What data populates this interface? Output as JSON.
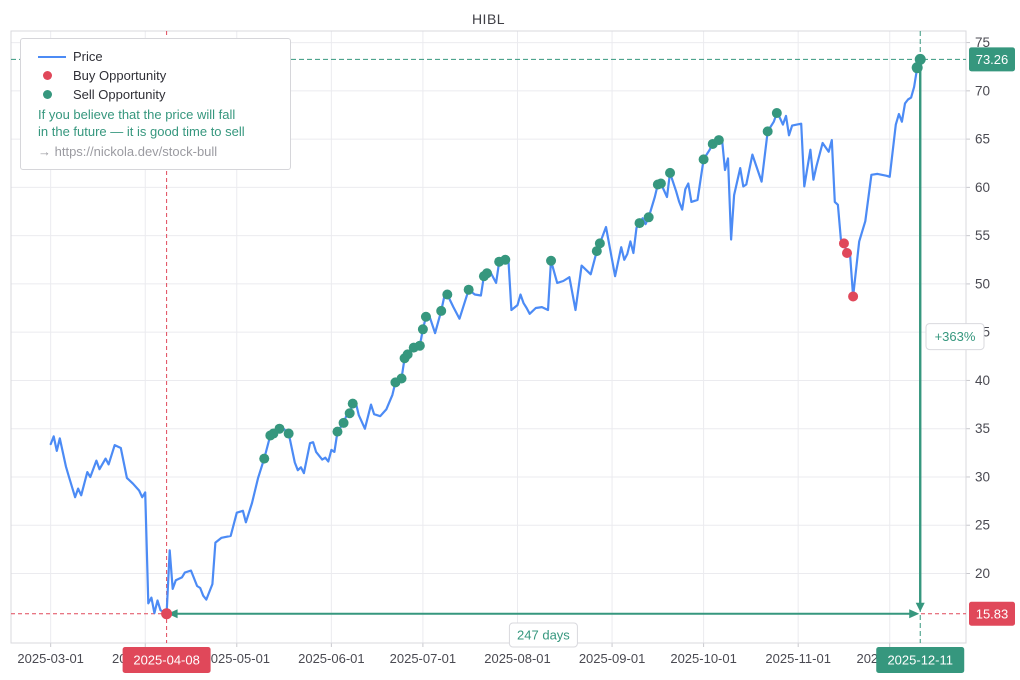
{
  "title": "HIBL",
  "legend": {
    "price_label": "Price",
    "buy_label": "Buy Opportunity",
    "sell_label": "Sell Opportunity",
    "note_line1": "If you believe that the price will fall",
    "note_line2": "in the future — it is good time to sell",
    "link": "→ https://nickola.dev/stock-bull"
  },
  "colors": {
    "price": "#4c8bf5",
    "buy": "#e0485a",
    "sell": "#36977e",
    "grid": "#ebebef",
    "border": "#d9d9de",
    "tick": "#c8c8cd",
    "text": "#4a4a52",
    "badge_text": "#ffffff",
    "box_bg": "#ffffff"
  },
  "chart_data": {
    "type": "line",
    "title": "HIBL",
    "xlabel": "",
    "ylabel": "",
    "grid": true,
    "legend_position": "top-left",
    "x_domain": [
      "2025-02-16",
      "2025-12-26"
    ],
    "y_domain": [
      12.8,
      76.2
    ],
    "x_ticks": [
      "2025-03-01",
      "2025-04-01",
      "2025-05-01",
      "2025-06-01",
      "2025-07-01",
      "2025-08-01",
      "2025-09-01",
      "2025-10-01",
      "2025-11-01",
      "2025-12-01"
    ],
    "y_ticks": [
      20,
      25,
      30,
      35,
      40,
      45,
      50,
      55,
      60,
      65,
      70,
      75
    ],
    "series": [
      {
        "name": "Price",
        "points": [
          [
            "2025-03-01",
            33.4
          ],
          [
            "2025-03-02",
            34.2
          ],
          [
            "2025-03-03",
            32.7
          ],
          [
            "2025-03-04",
            34.0
          ],
          [
            "2025-03-06",
            31.1
          ],
          [
            "2025-03-07",
            30.0
          ],
          [
            "2025-03-09",
            27.9
          ],
          [
            "2025-03-10",
            28.8
          ],
          [
            "2025-03-11",
            28.1
          ],
          [
            "2025-03-13",
            30.5
          ],
          [
            "2025-03-14",
            30.0
          ],
          [
            "2025-03-16",
            31.7
          ],
          [
            "2025-03-17",
            30.8
          ],
          [
            "2025-03-19",
            31.9
          ],
          [
            "2025-03-20",
            31.3
          ],
          [
            "2025-03-22",
            33.3
          ],
          [
            "2025-03-24",
            33.0
          ],
          [
            "2025-03-26",
            29.9
          ],
          [
            "2025-03-28",
            29.3
          ],
          [
            "2025-03-30",
            28.6
          ],
          [
            "2025-03-31",
            27.9
          ],
          [
            "2025-04-01",
            28.4
          ],
          [
            "2025-04-02",
            16.9
          ],
          [
            "2025-04-03",
            17.5
          ],
          [
            "2025-04-04",
            15.9
          ],
          [
            "2025-04-05",
            17.2
          ],
          [
            "2025-04-06",
            16.2
          ],
          [
            "2025-04-08",
            15.83
          ],
          [
            "2025-04-09",
            22.4
          ],
          [
            "2025-04-10",
            18.4
          ],
          [
            "2025-04-11",
            19.3
          ],
          [
            "2025-04-13",
            19.6
          ],
          [
            "2025-04-14",
            20.1
          ],
          [
            "2025-04-16",
            20.3
          ],
          [
            "2025-04-18",
            18.7
          ],
          [
            "2025-04-19",
            18.5
          ],
          [
            "2025-04-20",
            17.7
          ],
          [
            "2025-04-21",
            17.3
          ],
          [
            "2025-04-23",
            18.9
          ],
          [
            "2025-04-24",
            23.2
          ],
          [
            "2025-04-26",
            23.7
          ],
          [
            "2025-04-29",
            23.9
          ],
          [
            "2025-05-01",
            26.3
          ],
          [
            "2025-05-03",
            26.5
          ],
          [
            "2025-05-04",
            25.3
          ],
          [
            "2025-05-06",
            27.3
          ],
          [
            "2025-05-08",
            29.9
          ],
          [
            "2025-05-10",
            31.9
          ],
          [
            "2025-05-12",
            34.3
          ],
          [
            "2025-05-13",
            34.5
          ],
          [
            "2025-05-15",
            35.0
          ],
          [
            "2025-05-16",
            35.1
          ],
          [
            "2025-05-18",
            34.5
          ],
          [
            "2025-05-20",
            31.5
          ],
          [
            "2025-05-21",
            30.7
          ],
          [
            "2025-05-22",
            31.0
          ],
          [
            "2025-05-23",
            30.4
          ],
          [
            "2025-05-25",
            33.5
          ],
          [
            "2025-05-26",
            33.6
          ],
          [
            "2025-05-27",
            32.6
          ],
          [
            "2025-05-29",
            31.8
          ],
          [
            "2025-05-30",
            32.0
          ],
          [
            "2025-05-31",
            31.6
          ],
          [
            "2025-06-01",
            32.8
          ],
          [
            "2025-06-02",
            32.6
          ],
          [
            "2025-06-03",
            34.7
          ],
          [
            "2025-06-05",
            35.6
          ],
          [
            "2025-06-06",
            36.4
          ],
          [
            "2025-06-07",
            36.6
          ],
          [
            "2025-06-08",
            37.6
          ],
          [
            "2025-06-09",
            37.7
          ],
          [
            "2025-06-10",
            36.4
          ],
          [
            "2025-06-12",
            35.0
          ],
          [
            "2025-06-14",
            37.5
          ],
          [
            "2025-06-15",
            36.5
          ],
          [
            "2025-06-17",
            36.3
          ],
          [
            "2025-06-19",
            37.0
          ],
          [
            "2025-06-21",
            38.5
          ],
          [
            "2025-06-22",
            39.8
          ],
          [
            "2025-06-24",
            40.2
          ],
          [
            "2025-06-25",
            42.3
          ],
          [
            "2025-06-26",
            42.7
          ],
          [
            "2025-06-28",
            43.4
          ],
          [
            "2025-06-30",
            43.6
          ],
          [
            "2025-07-01",
            45.3
          ],
          [
            "2025-07-02",
            46.6
          ],
          [
            "2025-07-03",
            46.8
          ],
          [
            "2025-07-05",
            44.9
          ],
          [
            "2025-07-07",
            47.2
          ],
          [
            "2025-07-08",
            48.7
          ],
          [
            "2025-07-09",
            48.9
          ],
          [
            "2025-07-11",
            47.6
          ],
          [
            "2025-07-13",
            46.4
          ],
          [
            "2025-07-16",
            49.4
          ],
          [
            "2025-07-18",
            48.9
          ],
          [
            "2025-07-20",
            48.8
          ],
          [
            "2025-07-21",
            50.8
          ],
          [
            "2025-07-22",
            51.1
          ],
          [
            "2025-07-23",
            51.3
          ],
          [
            "2025-07-25",
            50.1
          ],
          [
            "2025-07-26",
            52.3
          ],
          [
            "2025-07-28",
            52.5
          ],
          [
            "2025-07-29",
            52.7
          ],
          [
            "2025-07-30",
            47.3
          ],
          [
            "2025-08-01",
            47.8
          ],
          [
            "2025-08-02",
            48.9
          ],
          [
            "2025-08-03",
            48.0
          ],
          [
            "2025-08-04",
            47.5
          ],
          [
            "2025-08-05",
            46.9
          ],
          [
            "2025-08-07",
            47.5
          ],
          [
            "2025-08-09",
            47.6
          ],
          [
            "2025-08-11",
            47.3
          ],
          [
            "2025-08-12",
            52.4
          ],
          [
            "2025-08-14",
            50.1
          ],
          [
            "2025-08-16",
            50.3
          ],
          [
            "2025-08-18",
            50.7
          ],
          [
            "2025-08-20",
            47.3
          ],
          [
            "2025-08-22",
            51.9
          ],
          [
            "2025-08-25",
            51.0
          ],
          [
            "2025-08-27",
            53.4
          ],
          [
            "2025-08-28",
            54.2
          ],
          [
            "2025-08-30",
            55.9
          ],
          [
            "2025-09-02",
            50.8
          ],
          [
            "2025-09-04",
            53.8
          ],
          [
            "2025-09-05",
            52.5
          ],
          [
            "2025-09-06",
            53.1
          ],
          [
            "2025-09-07",
            54.4
          ],
          [
            "2025-09-08",
            53.2
          ],
          [
            "2025-09-09",
            55.8
          ],
          [
            "2025-09-10",
            56.3
          ],
          [
            "2025-09-11",
            56.8
          ],
          [
            "2025-09-12",
            56.2
          ],
          [
            "2025-09-13",
            56.9
          ],
          [
            "2025-09-15",
            59.0
          ],
          [
            "2025-09-16",
            60.3
          ],
          [
            "2025-09-17",
            60.4
          ],
          [
            "2025-09-19",
            59.0
          ],
          [
            "2025-09-20",
            61.5
          ],
          [
            "2025-09-22",
            59.6
          ],
          [
            "2025-09-23",
            58.5
          ],
          [
            "2025-09-24",
            57.7
          ],
          [
            "2025-09-25",
            59.8
          ],
          [
            "2025-09-26",
            60.4
          ],
          [
            "2025-09-27",
            58.5
          ],
          [
            "2025-09-29",
            58.7
          ],
          [
            "2025-10-01",
            62.9
          ],
          [
            "2025-10-03",
            63.9
          ],
          [
            "2025-10-04",
            64.5
          ],
          [
            "2025-10-06",
            64.9
          ],
          [
            "2025-10-07",
            65.1
          ],
          [
            "2025-10-08",
            61.8
          ],
          [
            "2025-10-09",
            63.0
          ],
          [
            "2025-10-10",
            54.6
          ],
          [
            "2025-10-11",
            59.2
          ],
          [
            "2025-10-13",
            62.0
          ],
          [
            "2025-10-14",
            60.1
          ],
          [
            "2025-10-15",
            60.3
          ],
          [
            "2025-10-17",
            63.4
          ],
          [
            "2025-10-20",
            60.6
          ],
          [
            "2025-10-22",
            65.8
          ],
          [
            "2025-10-24",
            66.8
          ],
          [
            "2025-10-25",
            67.7
          ],
          [
            "2025-10-26",
            67.2
          ],
          [
            "2025-10-27",
            66.5
          ],
          [
            "2025-10-28",
            67.4
          ],
          [
            "2025-10-29",
            65.4
          ],
          [
            "2025-10-30",
            66.4
          ],
          [
            "2025-11-02",
            66.6
          ],
          [
            "2025-11-03",
            60.1
          ],
          [
            "2025-11-05",
            63.9
          ],
          [
            "2025-11-06",
            60.8
          ],
          [
            "2025-11-07",
            62.2
          ],
          [
            "2025-11-09",
            64.6
          ],
          [
            "2025-11-11",
            63.7
          ],
          [
            "2025-11-12",
            64.9
          ],
          [
            "2025-11-13",
            58.5
          ],
          [
            "2025-11-14",
            58.2
          ],
          [
            "2025-11-15",
            54.6
          ],
          [
            "2025-11-16",
            54.2
          ],
          [
            "2025-11-17",
            53.2
          ],
          [
            "2025-11-18",
            53.0
          ],
          [
            "2025-11-19",
            48.7
          ],
          [
            "2025-11-21",
            54.4
          ],
          [
            "2025-11-23",
            56.5
          ],
          [
            "2025-11-25",
            61.3
          ],
          [
            "2025-11-27",
            61.4
          ],
          [
            "2025-11-30",
            61.2
          ],
          [
            "2025-12-01",
            61.1
          ],
          [
            "2025-12-03",
            66.5
          ],
          [
            "2025-12-04",
            67.6
          ],
          [
            "2025-12-05",
            66.8
          ],
          [
            "2025-12-06",
            68.7
          ],
          [
            "2025-12-07",
            69.1
          ],
          [
            "2025-12-08",
            69.3
          ],
          [
            "2025-12-09",
            70.4
          ],
          [
            "2025-12-10",
            72.4
          ],
          [
            "2025-12-11",
            73.26
          ]
        ]
      }
    ],
    "buy_points": [
      [
        "2025-04-08",
        15.83
      ],
      [
        "2025-11-16",
        54.2
      ],
      [
        "2025-11-17",
        53.2
      ],
      [
        "2025-11-19",
        48.7
      ]
    ],
    "sell_points": [
      [
        "2025-05-10",
        31.9
      ],
      [
        "2025-05-12",
        34.3
      ],
      [
        "2025-05-13",
        34.5
      ],
      [
        "2025-05-15",
        35.0
      ],
      [
        "2025-05-18",
        34.5
      ],
      [
        "2025-06-03",
        34.7
      ],
      [
        "2025-06-05",
        35.6
      ],
      [
        "2025-06-07",
        36.6
      ],
      [
        "2025-06-08",
        37.6
      ],
      [
        "2025-06-22",
        39.8
      ],
      [
        "2025-06-24",
        40.2
      ],
      [
        "2025-06-25",
        42.3
      ],
      [
        "2025-06-26",
        42.7
      ],
      [
        "2025-06-28",
        43.4
      ],
      [
        "2025-06-30",
        43.6
      ],
      [
        "2025-07-01",
        45.3
      ],
      [
        "2025-07-02",
        46.6
      ],
      [
        "2025-07-07",
        47.2
      ],
      [
        "2025-07-09",
        48.9
      ],
      [
        "2025-07-16",
        49.4
      ],
      [
        "2025-07-21",
        50.8
      ],
      [
        "2025-07-22",
        51.1
      ],
      [
        "2025-07-26",
        52.3
      ],
      [
        "2025-07-28",
        52.5
      ],
      [
        "2025-08-12",
        52.4
      ],
      [
        "2025-08-27",
        53.4
      ],
      [
        "2025-08-28",
        54.2
      ],
      [
        "2025-09-10",
        56.3
      ],
      [
        "2025-09-13",
        56.9
      ],
      [
        "2025-09-16",
        60.3
      ],
      [
        "2025-09-17",
        60.4
      ],
      [
        "2025-09-20",
        61.5
      ],
      [
        "2025-10-01",
        62.9
      ],
      [
        "2025-10-04",
        64.5
      ],
      [
        "2025-10-06",
        64.9
      ],
      [
        "2025-10-22",
        65.8
      ],
      [
        "2025-10-25",
        67.7
      ],
      [
        "2025-12-10",
        72.4
      ],
      [
        "2025-12-11",
        73.26
      ]
    ],
    "annotations": {
      "buy": {
        "date": "2025-04-08",
        "price": 15.83,
        "price_label": "15.83",
        "date_label": "2025-04-08"
      },
      "sell": {
        "date": "2025-12-11",
        "price": 73.26,
        "price_label": "73.26",
        "date_label": "2025-12-11"
      },
      "gain_label": "+363%",
      "duration_label": "247 days"
    }
  }
}
